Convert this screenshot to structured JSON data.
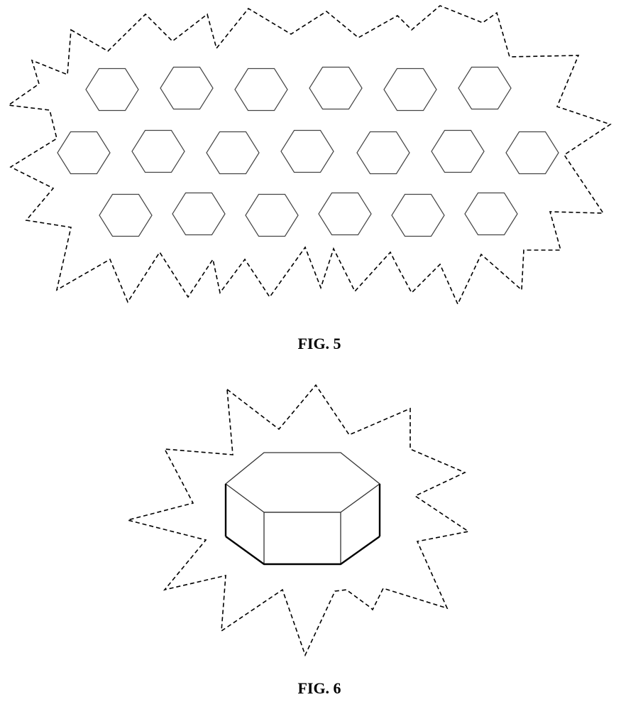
{
  "figures": [
    {
      "caption": "FIG. 5",
      "hexagon_rows": [
        6,
        7,
        6
      ]
    },
    {
      "caption": "FIG. 6"
    }
  ]
}
